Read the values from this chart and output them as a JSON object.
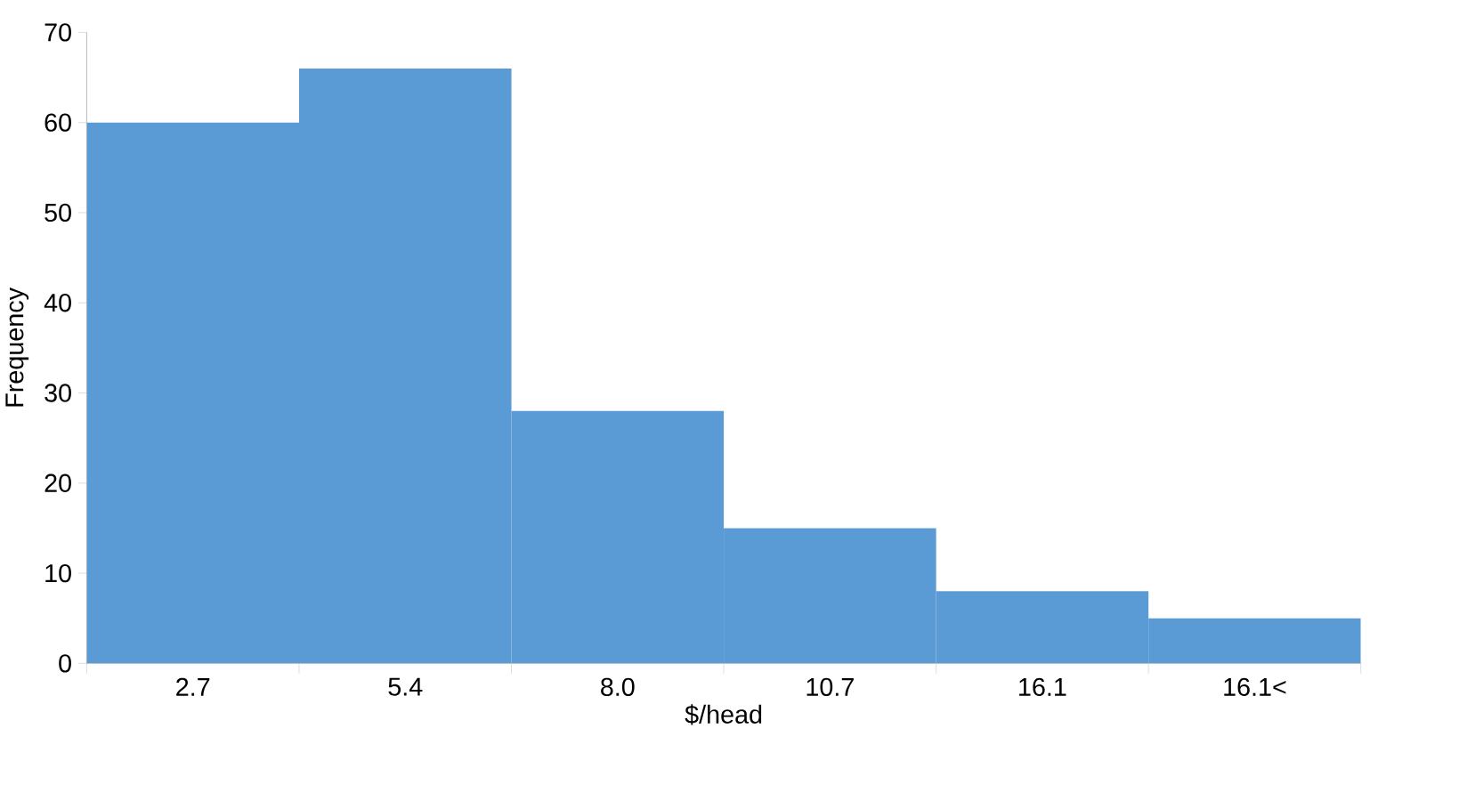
{
  "chart_data": {
    "type": "bar",
    "xlabel": "$/head",
    "ylabel": "Frequency",
    "categories": [
      "2.7",
      "5.4",
      "8.0",
      "10.7",
      "16.1",
      "16.1<"
    ],
    "values": [
      60,
      66,
      28,
      15,
      8,
      5
    ],
    "color": "#5b9bd5",
    "ylim": [
      0,
      70
    ],
    "yticks": [
      0,
      10,
      20,
      30,
      40,
      50,
      60,
      70
    ]
  }
}
